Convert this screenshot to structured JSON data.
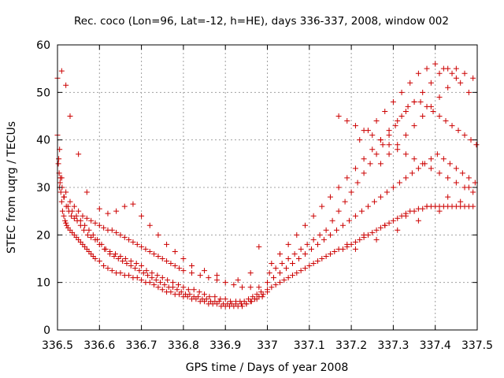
{
  "chart_data": {
    "type": "scatter",
    "title": "Rec. coco (Lon=96, Lat=-12, h=HE), days 336-337, 2008, window 002",
    "xlabel": "GPS time / Days of year 2008",
    "ylabel": "STEC from uqrg / TECUs",
    "xlim": [
      336.5,
      337.5
    ],
    "ylim": [
      0,
      60
    ],
    "xticks": [
      336.5,
      336.6,
      336.7,
      336.8,
      336.9,
      337,
      337.1,
      337.2,
      337.3,
      337.4,
      337.5
    ],
    "xtick_labels": [
      "336.5",
      "336.6",
      "336.7",
      "336.8",
      "336.9",
      "337",
      "337.1",
      "337.2",
      "337.3",
      "337.4",
      "337.5"
    ],
    "yticks": [
      0,
      10,
      20,
      30,
      40,
      50,
      60
    ],
    "ytick_labels": [
      "0",
      "10",
      "20",
      "30",
      "40",
      "50",
      "60"
    ],
    "grid": true,
    "marker": "+",
    "color": "#cc0000",
    "series": [
      {
        "name": "STEC",
        "x": [
          336.502,
          336.504,
          336.506,
          336.508,
          336.51,
          336.512,
          336.515,
          336.518,
          336.52,
          336.522,
          336.525,
          336.53,
          336.535,
          336.54,
          336.545,
          336.55,
          336.555,
          336.56,
          336.565,
          336.57,
          336.575,
          336.58,
          336.585,
          336.59,
          336.6,
          336.61,
          336.62,
          336.63,
          336.64,
          336.65,
          336.66,
          336.67,
          336.68,
          336.69,
          336.7,
          336.71,
          336.72,
          336.73,
          336.74,
          336.75,
          336.76,
          336.77,
          336.78,
          336.79,
          336.8,
          336.81,
          336.82,
          336.83,
          336.84,
          336.85,
          336.86,
          336.87,
          336.88,
          336.89,
          336.9,
          336.91,
          336.92,
          336.93,
          336.94,
          336.95,
          336.96,
          336.97,
          336.98,
          336.99,
          337.0,
          336.503,
          336.507,
          336.511,
          336.516,
          336.521,
          336.527,
          336.533,
          336.54,
          336.547,
          336.555,
          336.563,
          336.572,
          336.58,
          336.59,
          336.6,
          336.612,
          336.625,
          336.638,
          336.65,
          336.662,
          336.675,
          336.688,
          336.7,
          336.712,
          336.725,
          336.738,
          336.75,
          336.762,
          336.775,
          336.788,
          336.8,
          336.812,
          336.825,
          336.838,
          336.85,
          336.862,
          336.875,
          336.888,
          336.9,
          336.912,
          336.925,
          336.938,
          336.95,
          336.962,
          336.975,
          336.988,
          336.505,
          336.515,
          336.525,
          336.535,
          336.545,
          336.555,
          336.565,
          336.575,
          336.585,
          336.595,
          336.605,
          336.615,
          336.625,
          336.635,
          336.645,
          336.655,
          336.665,
          336.675,
          336.685,
          336.695,
          336.705,
          336.715,
          336.725,
          336.735,
          336.745,
          336.755,
          336.765,
          336.775,
          336.785,
          336.795,
          336.805,
          336.815,
          336.825,
          336.835,
          336.845,
          336.855,
          336.865,
          336.875,
          336.885,
          336.895,
          336.905,
          336.915,
          336.925,
          336.935,
          336.945,
          336.955,
          336.965,
          336.975,
          336.985,
          336.5,
          336.505,
          336.51,
          336.52,
          336.53,
          336.54,
          336.55,
          336.56,
          336.57,
          336.58,
          336.59,
          336.6,
          336.61,
          336.62,
          336.63,
          336.64,
          336.65,
          336.66,
          336.67,
          336.68,
          336.69,
          336.7,
          336.71,
          336.72,
          336.73,
          336.74,
          336.75,
          336.76,
          336.77,
          336.78,
          336.79,
          336.8,
          336.82,
          336.84,
          336.86,
          336.88,
          336.9,
          336.92,
          336.94,
          336.96,
          336.98,
          336.5,
          336.51,
          336.52,
          336.53,
          336.55,
          336.57,
          336.6,
          336.62,
          336.64,
          336.66,
          336.68,
          336.7,
          336.72,
          336.74,
          336.76,
          336.78,
          336.8,
          336.82,
          336.85,
          336.88,
          336.93,
          336.96,
          336.98,
          337.0,
          337.01,
          337.02,
          337.03,
          337.04,
          337.05,
          337.06,
          337.07,
          337.08,
          337.09,
          337.1,
          337.11,
          337.12,
          337.13,
          337.14,
          337.15,
          337.16,
          337.17,
          337.18,
          337.19,
          337.2,
          337.21,
          337.22,
          337.23,
          337.24,
          337.25,
          337.26,
          337.27,
          337.28,
          337.29,
          337.3,
          337.31,
          337.32,
          337.33,
          337.34,
          337.35,
          337.36,
          337.37,
          337.38,
          337.39,
          337.4,
          337.41,
          337.42,
          337.43,
          337.44,
          337.45,
          337.46,
          337.47,
          337.48,
          337.49,
          337.0,
          337.015,
          337.03,
          337.045,
          337.06,
          337.075,
          337.09,
          337.105,
          337.12,
          337.135,
          337.15,
          337.165,
          337.18,
          337.195,
          337.21,
          337.225,
          337.24,
          337.255,
          337.27,
          337.285,
          337.3,
          337.315,
          337.33,
          337.345,
          337.36,
          337.375,
          337.39,
          337.405,
          337.42,
          337.435,
          337.45,
          337.465,
          337.48,
          337.495,
          337.005,
          337.02,
          337.035,
          337.05,
          337.065,
          337.08,
          337.095,
          337.11,
          337.125,
          337.14,
          337.155,
          337.17,
          337.185,
          337.2,
          337.215,
          337.23,
          337.245,
          337.26,
          337.275,
          337.29,
          337.305,
          337.32,
          337.335,
          337.35,
          337.365,
          337.38,
          337.395,
          337.41,
          337.425,
          337.44,
          337.455,
          337.47,
          337.485,
          337.498,
          337.01,
          337.03,
          337.05,
          337.07,
          337.09,
          337.11,
          337.13,
          337.15,
          337.17,
          337.19,
          337.21,
          337.23,
          337.25,
          337.27,
          337.29,
          337.31,
          337.33,
          337.35,
          337.37,
          337.39,
          337.41,
          337.43,
          337.45,
          337.47,
          337.49,
          337.17,
          337.19,
          337.21,
          337.23,
          337.25,
          337.27,
          337.29,
          337.31,
          337.33,
          337.35,
          337.37,
          337.39,
          337.41,
          337.43,
          337.45,
          337.47,
          337.49,
          337.22,
          337.24,
          337.26,
          337.28,
          337.3,
          337.32,
          337.34,
          337.36,
          337.38,
          337.4,
          337.42,
          337.44,
          337.46,
          337.48,
          337.27,
          337.29,
          337.31,
          337.33,
          337.35,
          337.37,
          337.39,
          337.41,
          337.43,
          337.45,
          337.19,
          337.23,
          337.28,
          337.33,
          337.38,
          337.43,
          337.48,
          337.21,
          337.26,
          337.31,
          337.36,
          337.41,
          337.46
        ],
        "y": [
          35,
          33,
          31,
          29,
          27,
          25,
          24,
          23,
          22.5,
          22,
          21.5,
          21,
          20.5,
          20,
          19.5,
          19,
          18.5,
          18,
          17.5,
          17,
          16.5,
          16,
          15.5,
          15,
          14.5,
          13.5,
          13,
          12.5,
          12,
          12,
          11.5,
          11.5,
          11,
          11,
          10.5,
          10,
          10,
          9.5,
          9,
          8.5,
          8,
          8,
          7.5,
          7.5,
          7,
          7,
          6.5,
          6.5,
          6,
          6,
          5.5,
          5.5,
          5.5,
          5,
          5,
          5,
          5,
          5,
          5,
          5.5,
          6,
          6.5,
          7,
          7.5,
          8,
          36,
          32,
          30,
          28,
          26,
          25,
          24,
          23.5,
          23,
          22,
          21,
          20,
          19.5,
          19,
          18,
          17,
          16.5,
          16,
          15.5,
          15,
          14.5,
          14,
          13.5,
          12.5,
          12,
          11.5,
          11,
          10.5,
          10,
          9.5,
          9,
          8.5,
          8.5,
          8,
          7.5,
          7,
          7,
          6.5,
          6.5,
          6,
          6,
          5.5,
          5.5,
          6,
          6.5,
          7,
          30,
          28,
          26,
          25,
          24,
          23,
          22,
          21,
          20,
          19,
          18,
          17,
          16,
          15.5,
          15,
          14.5,
          14,
          13.5,
          13,
          12.5,
          12,
          11.5,
          11,
          10.5,
          10,
          9.5,
          9,
          9,
          8.5,
          8,
          7.5,
          7.5,
          7,
          7,
          6.5,
          6.5,
          6,
          6,
          6,
          5.5,
          5.5,
          5.5,
          5.5,
          6,
          6,
          6.5,
          7,
          7.5,
          8,
          41,
          38,
          32,
          29,
          27,
          26,
          25,
          24,
          23.5,
          23,
          22.5,
          22,
          21.5,
          21,
          21,
          20.5,
          20,
          19.5,
          19,
          18.5,
          18,
          17.5,
          17,
          16.5,
          16,
          15.5,
          15,
          14.5,
          14,
          13.5,
          13,
          12.5,
          12,
          11.5,
          11,
          10.5,
          10,
          9.5,
          9,
          9,
          9,
          53,
          54.5,
          51.5,
          45,
          37,
          29,
          25.5,
          24.5,
          25,
          26,
          26.5,
          24,
          22,
          20,
          18,
          16.5,
          15,
          13.5,
          12.5,
          11.5,
          10.5,
          12,
          17.5,
          8.5,
          9,
          9.5,
          10,
          10.5,
          11,
          11.5,
          12,
          12.5,
          13,
          13.5,
          14,
          14.5,
          15,
          15.5,
          16,
          16.5,
          17,
          17,
          17.5,
          18,
          18.5,
          19,
          19.5,
          20,
          20.5,
          21,
          21.5,
          22,
          22.5,
          23,
          23.5,
          24,
          24.5,
          25,
          25,
          25.5,
          25.5,
          26,
          26,
          26,
          26,
          26,
          26,
          26,
          26,
          26,
          26,
          26,
          26,
          10,
          11,
          12,
          13,
          14,
          15,
          16,
          17,
          18,
          19,
          20,
          21,
          22,
          23,
          24,
          25,
          26,
          27,
          28,
          29,
          30,
          31,
          32,
          33,
          34,
          35,
          36,
          37,
          36,
          35,
          34,
          33,
          32,
          31,
          12,
          13,
          14,
          15,
          16,
          17,
          18,
          19,
          20,
          21,
          23,
          25,
          27,
          29,
          31,
          33,
          35,
          37,
          39,
          41,
          43,
          45,
          47,
          48,
          48,
          47,
          46,
          45,
          44,
          43,
          42,
          41,
          40,
          39,
          14,
          16,
          18,
          20,
          22,
          24,
          26,
          28,
          30,
          32,
          34,
          36,
          38,
          40,
          42,
          44,
          46,
          48,
          50,
          52,
          54,
          55,
          55,
          54,
          53,
          45,
          44,
          43,
          42,
          41,
          40,
          39,
          38,
          37,
          36,
          35,
          34,
          33,
          32,
          31,
          30,
          29,
          40,
          42,
          44,
          46,
          48,
          50,
          52,
          54,
          55,
          56,
          55,
          54,
          52,
          50,
          35,
          37,
          39,
          41,
          43,
          45,
          47,
          49,
          51,
          53,
          18,
          20,
          22,
          24,
          26,
          28,
          30,
          17,
          19,
          21,
          23,
          25,
          27
        ]
      }
    ]
  }
}
